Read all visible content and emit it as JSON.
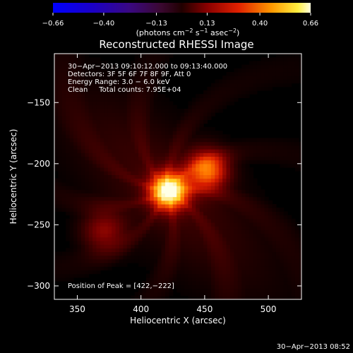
{
  "colorbar": {
    "ticks": [
      {
        "value": -0.66,
        "label": "−0.66"
      },
      {
        "value": -0.4,
        "label": "−0.40"
      },
      {
        "value": -0.13,
        "label": "−0.13"
      },
      {
        "value": 0.13,
        "label": "0.13"
      },
      {
        "value": 0.4,
        "label": "0.40"
      },
      {
        "value": 0.66,
        "label": "0.66"
      }
    ],
    "range": [
      -0.66,
      0.66
    ],
    "unit_parts": {
      "pre": "(photons cm",
      "exp1": "−2",
      "mid1": " s",
      "exp2": "−1",
      "mid2": " asec",
      "exp3": "−2",
      "post": ")"
    }
  },
  "chart_data": {
    "type": "heatmap",
    "title": "Reconstructed RHESSI Image",
    "xlabel": "Heliocentric X (arcsec)",
    "ylabel": "Heliocentric Y (arcsec)",
    "xlim": [
      332,
      526
    ],
    "ylim": [
      -311,
      -110
    ],
    "xticks": [
      350,
      400,
      450,
      500
    ],
    "yticks": [
      -150,
      -200,
      -250,
      -300
    ],
    "colormap": "hot (black-red-orange-yellow-white)",
    "sources": [
      {
        "x": 422,
        "y": -222,
        "peak": 0.66
      },
      {
        "x": 452,
        "y": -205,
        "peak": 0.4
      },
      {
        "x": 371,
        "y": -255,
        "peak": 0.18
      }
    ],
    "info_lines": [
      "30−Apr−2013 09:10:12.000 to 09:13:40.000",
      "Detectors: 3F 5F 6F 7F 8F 9F, Att 0",
      "Energy Range: 3.0 − 6.0 keV",
      "Clean     Total counts: 7.95E+04"
    ],
    "peak_label": "Position of Peak = [422,−222]"
  },
  "footer_timestamp": "30−Apr−2013 08:52"
}
